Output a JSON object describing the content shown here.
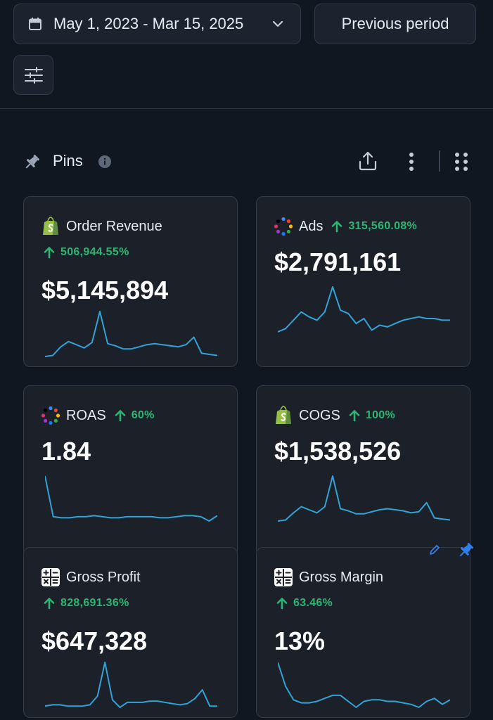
{
  "toolbar": {
    "date_range": "May 1, 2023 - Mar 15, 2025",
    "compare_label": "Previous period",
    "filter_icon": "sliders-icon"
  },
  "pins": {
    "title": "Pins",
    "icons": [
      "pin-icon",
      "info-icon",
      "share-icon",
      "more-vertical-icon",
      "drag-handle-icon"
    ]
  },
  "colors": {
    "positive": "#2bb673",
    "sparkline": "#31a3d8",
    "card_bg": "#1b2029",
    "page_bg": "#111721",
    "pin_blue": "#2f80ed"
  },
  "cards": [
    {
      "name": "Order Revenue",
      "delta": "506,944.55%",
      "value": "$5,145,894",
      "icon": "shopify-icon",
      "trend": [
        2,
        3,
        11,
        16,
        13,
        10,
        15,
        44,
        14,
        12,
        9,
        9,
        11,
        13,
        14,
        13,
        12,
        11,
        13,
        20,
        5,
        4,
        3
      ]
    },
    {
      "name": "Ads",
      "delta": "315,560.08%",
      "value": "$2,791,161",
      "icon": "ads-dots-icon",
      "trend": [
        15,
        17,
        22,
        27,
        24,
        22,
        27,
        42,
        28,
        26,
        20,
        23,
        16,
        19,
        18,
        20,
        22,
        23,
        24,
        23,
        23,
        22,
        22
      ]
    },
    {
      "name": "ROAS",
      "delta": "60%",
      "value": "1.84",
      "icon": "ads-dots-icon",
      "trend": [
        50,
        12,
        11,
        11,
        12,
        12,
        13,
        12,
        11,
        11,
        12,
        12,
        12,
        12,
        11,
        11,
        12,
        13,
        13,
        12,
        8,
        13
      ]
    },
    {
      "name": "COGS",
      "delta": "100%",
      "value": "$1,538,526",
      "icon": "shopify-icon",
      "trend": [
        2,
        3,
        10,
        16,
        13,
        10,
        16,
        46,
        14,
        12,
        9,
        9,
        11,
        13,
        14,
        13,
        12,
        10,
        11,
        20,
        5,
        4,
        3
      ]
    },
    {
      "name": "Gross Profit",
      "delta": "828,691.36%",
      "value": "$647,328",
      "icon": "calculator-icon",
      "trend": [
        6,
        7,
        7,
        6,
        6,
        6,
        7,
        14,
        41,
        11,
        5,
        9,
        9,
        9,
        10,
        10,
        9,
        8,
        7,
        8,
        12,
        19,
        6,
        6
      ]
    },
    {
      "name": "Gross Margin",
      "delta": "63.46%",
      "value": "13%",
      "icon": "calculator-icon",
      "trend": [
        40,
        24,
        15,
        13,
        13,
        14,
        16,
        18,
        18,
        14,
        10,
        14,
        15,
        15,
        14,
        14,
        13,
        12,
        10,
        14,
        16,
        12,
        15
      ]
    }
  ]
}
